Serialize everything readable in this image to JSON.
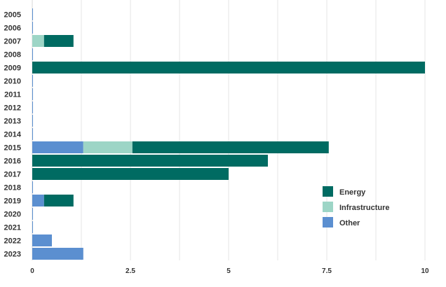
{
  "chart_data": {
    "type": "bar",
    "orientation": "horizontal",
    "stacked": true,
    "categories": [
      "2005",
      "2006",
      "2007",
      "2008",
      "2009",
      "2010",
      "2011",
      "2012",
      "2013",
      "2014",
      "2015",
      "2016",
      "2017",
      "2018",
      "2019",
      "2020",
      "2021",
      "2022",
      "2023"
    ],
    "series": [
      {
        "name": "Other",
        "color": "#5b8fd0",
        "values": [
          0,
          0,
          0,
          0,
          0,
          0,
          0,
          0,
          0,
          0,
          1.3,
          0,
          0,
          0,
          0.3,
          0,
          0,
          0.5,
          1.3
        ]
      },
      {
        "name": "Infrastructure",
        "color": "#9dd5c6",
        "values": [
          0,
          0,
          0.3,
          0,
          0,
          0,
          0,
          0,
          0,
          0,
          1.25,
          0,
          0,
          0,
          0,
          0,
          0,
          0,
          0
        ]
      },
      {
        "name": "Energy",
        "color": "#006b62",
        "values": [
          0,
          0,
          0.75,
          0,
          10,
          0,
          0,
          0,
          0,
          0,
          5,
          6,
          5,
          0,
          0.75,
          0,
          0,
          0,
          0
        ]
      }
    ],
    "xlim": [
      0,
      10
    ],
    "xticks": [
      0,
      2.5,
      5,
      7.5,
      10
    ],
    "xtick_labels": [
      "0",
      "2.5",
      "5",
      "7.5",
      "10"
    ],
    "grid": true,
    "legend_position": "bottom-right",
    "legend_order": [
      "Energy",
      "Infrastructure",
      "Other"
    ]
  }
}
